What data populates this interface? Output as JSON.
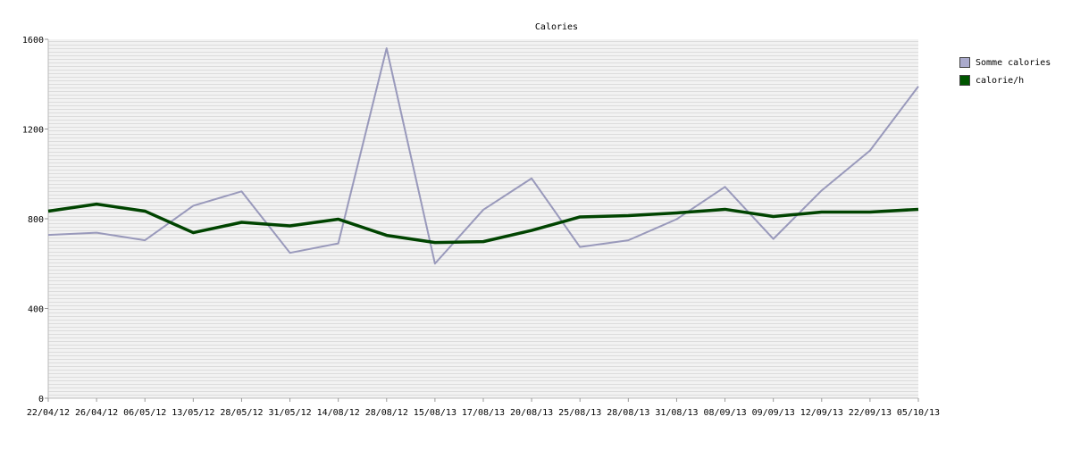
{
  "chart_data": {
    "type": "line",
    "title": "Calories",
    "categories": [
      "22/04/12",
      "26/04/12",
      "06/05/12",
      "13/05/12",
      "28/05/12",
      "31/05/12",
      "14/08/12",
      "28/08/12",
      "15/08/13",
      "17/08/13",
      "20/08/13",
      "25/08/13",
      "28/08/13",
      "31/08/13",
      "08/09/13",
      "09/09/13",
      "12/09/13",
      "22/09/13",
      "05/10/13"
    ],
    "series": [
      {
        "name": "Somme calories",
        "color": "#9999bb",
        "values": [
          728,
          738,
          704,
          858,
          922,
          648,
          690,
          1560,
          600,
          840,
          980,
          674,
          704,
          798,
          942,
          710,
          926,
          1104,
          1390
        ]
      },
      {
        "name": "calorie/h",
        "color": "#004400",
        "values": [
          834,
          865,
          834,
          738,
          784,
          768,
          798,
          726,
          694,
          698,
          748,
          808,
          814,
          826,
          842,
          810,
          830,
          830,
          842
        ]
      }
    ],
    "ylim": [
      0,
      1600
    ],
    "yticks": [
      0,
      400,
      800,
      1200,
      1600
    ],
    "grid": true,
    "legend": "top-right"
  },
  "legend": {
    "items": [
      {
        "label": "Somme calories",
        "color": "#aaaacc"
      },
      {
        "label": "calorie/h",
        "color": "#005500"
      }
    ]
  }
}
